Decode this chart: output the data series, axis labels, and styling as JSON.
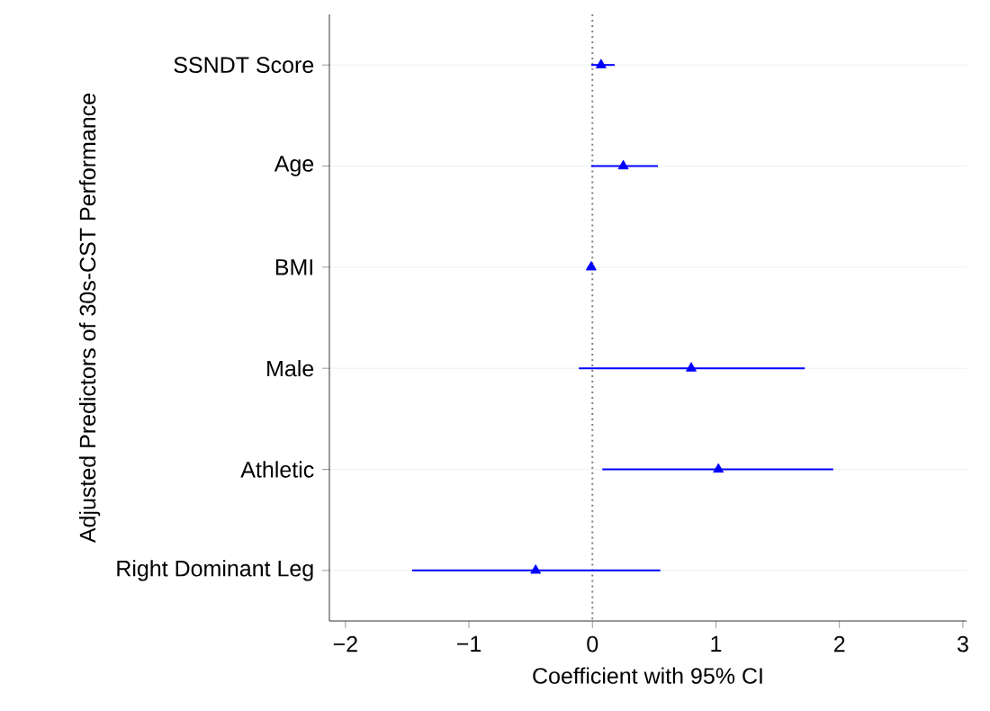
{
  "chart_data": {
    "type": "scatter",
    "orientation": "horizontal",
    "xlabel": "Coefficient with 95% CI",
    "ylabel": "Adjusted Predictors of 30s-CST Performance",
    "categories": [
      "SSNDT Score",
      "Age",
      "BMI",
      "Male",
      "Athletic",
      "Right Dominant Leg"
    ],
    "values": [
      0.07,
      0.25,
      -0.01,
      0.8,
      1.02,
      -0.46
    ],
    "errors": [
      [
        -0.01,
        0.18
      ],
      [
        -0.01,
        0.53
      ],
      [
        -0.04,
        0.02
      ],
      [
        -0.11,
        1.72
      ],
      [
        0.08,
        1.95
      ],
      [
        -1.46,
        0.55
      ]
    ],
    "color": "#0000ff",
    "marker": "triangle",
    "grid": "y",
    "xlim": [
      -2.13,
      3.03
    ],
    "xticks": [
      {
        "value": -2,
        "label": "−2"
      },
      {
        "value": -1,
        "label": "−1"
      },
      0,
      1,
      2,
      3
    ],
    "ref_lines": [
      {
        "axis": "x",
        "value": 0,
        "color": "#808080",
        "line_style": "dotted"
      }
    ]
  }
}
